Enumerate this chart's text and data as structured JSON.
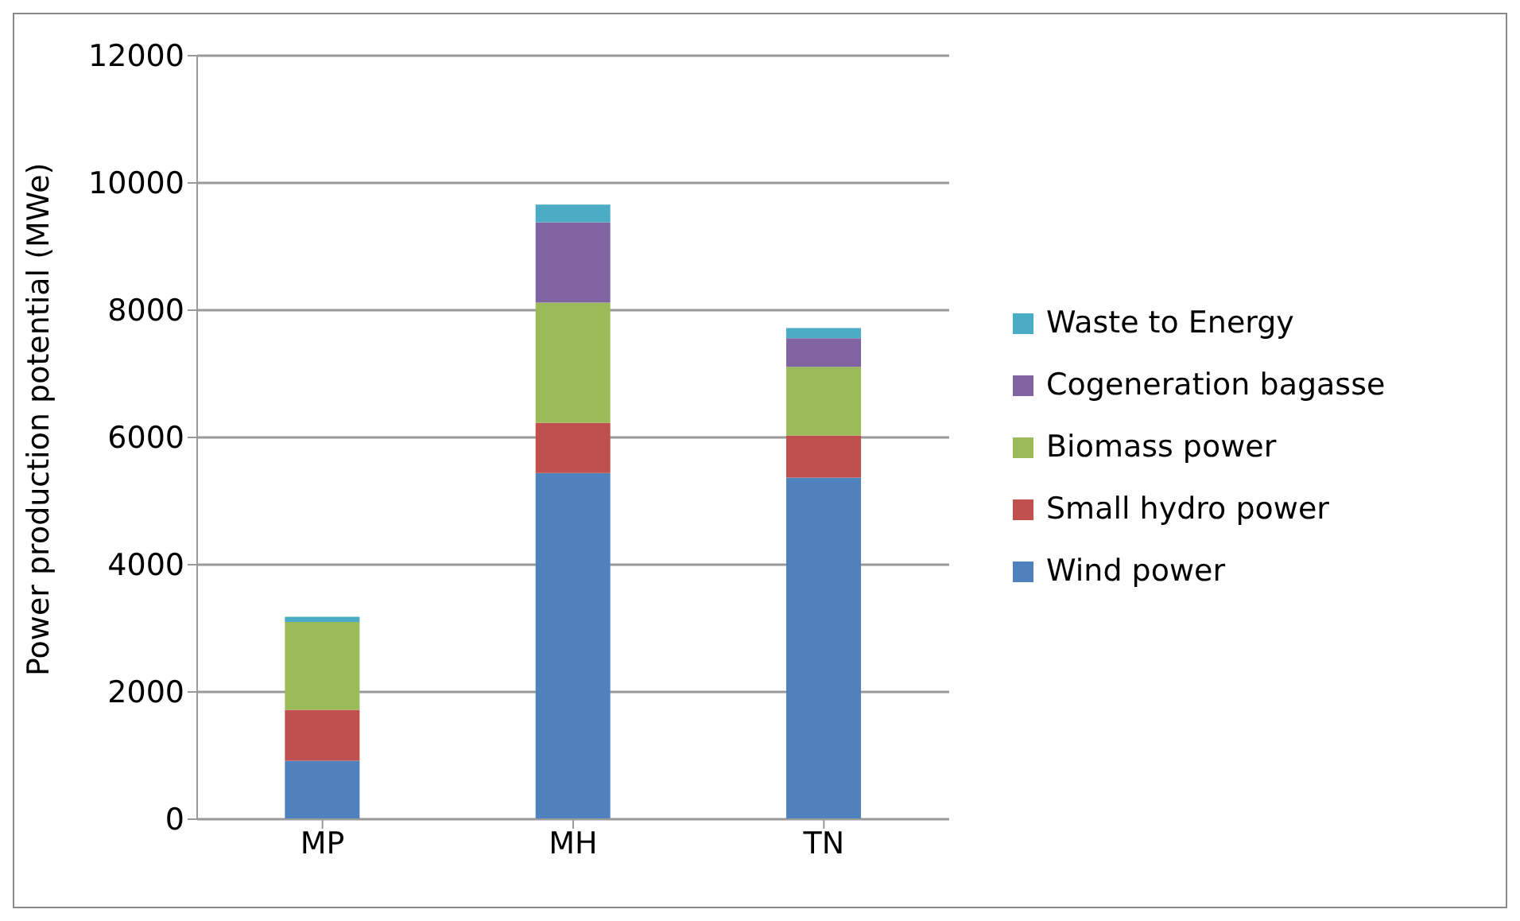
{
  "chart_data": {
    "type": "bar",
    "stacked": true,
    "ylabel": "Power production potential (MWe)",
    "categories": [
      "MP",
      "MH",
      "TN"
    ],
    "series": [
      {
        "name": "Wind power",
        "color": "#4f81bd",
        "values": [
          920,
          5440,
          5370
        ]
      },
      {
        "name": "Small hydro power",
        "color": "#c0504d",
        "values": [
          800,
          790,
          660
        ]
      },
      {
        "name": "Biomass power",
        "color": "#9bbb59",
        "values": [
          1380,
          1890,
          1080
        ]
      },
      {
        "name": "Cogeneration bagasse",
        "color": "#8064a2",
        "values": [
          0,
          1260,
          450
        ]
      },
      {
        "name": "Waste to Energy",
        "color": "#4bacc6",
        "values": [
          80,
          280,
          160
        ]
      }
    ],
    "ylim": [
      0,
      12000
    ],
    "yticks": [
      0,
      2000,
      4000,
      6000,
      8000,
      10000,
      12000
    ],
    "grid": "y",
    "legend": "right"
  }
}
